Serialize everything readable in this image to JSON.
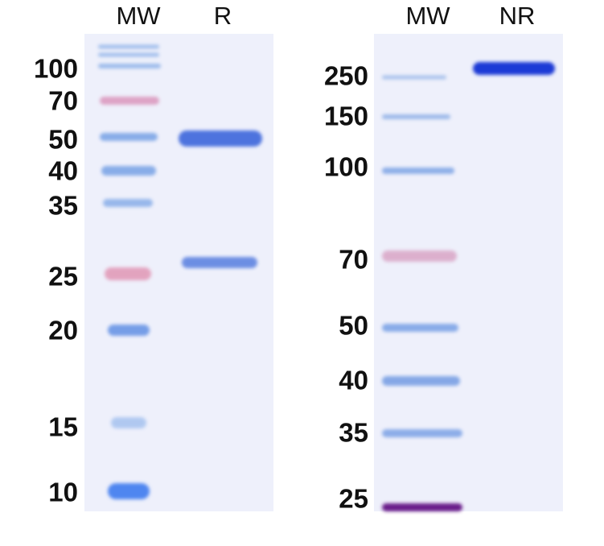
{
  "panels": [
    {
      "lanes": [
        "MW",
        "R"
      ],
      "markers": [
        "100",
        "70",
        "50",
        "40",
        "35",
        "25",
        "20",
        "15",
        "10"
      ]
    },
    {
      "lanes": [
        "MW",
        "NR"
      ],
      "markers": [
        "250",
        "150",
        "100",
        "70",
        "50",
        "40",
        "35",
        "25"
      ]
    }
  ]
}
